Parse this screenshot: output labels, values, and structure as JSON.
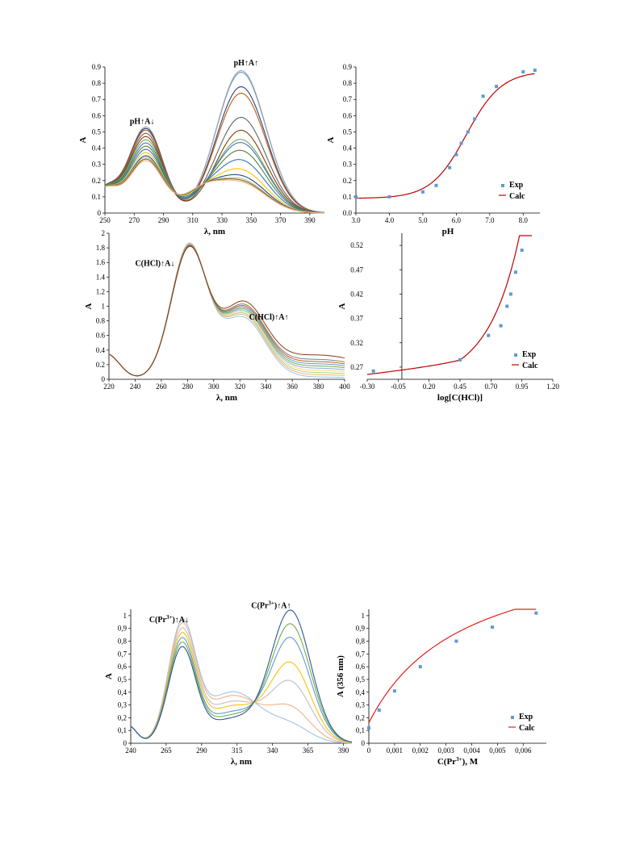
{
  "chart_data": [
    {
      "id": "c1",
      "type": "line",
      "xlabel": "λ, nm",
      "ylabel": "A",
      "xlim": [
        250,
        400
      ],
      "ylim": [
        0,
        0.9
      ],
      "xticks": [
        "250",
        "270",
        "290",
        "310",
        "330",
        "350",
        "370",
        "390"
      ],
      "yticks": [
        "0",
        "0.1",
        "0.2",
        "0.3",
        "0.4",
        "0.5",
        "0.6",
        "0.7",
        "0.8",
        "0.9"
      ],
      "annotations": [
        {
          "text": "pH↑A↓",
          "x": 267,
          "y": 0.55
        },
        {
          "text": "pH↑A↑",
          "x": 338,
          "y": 0.91
        }
      ],
      "shared": {
        "iso1": 255,
        "iso1y": 0.15,
        "iso2": 297,
        "iso2y": 0.27
      },
      "series": [
        {
          "color": "#5b9bd5",
          "p1": 0.52,
          "p2": 0.87
        },
        {
          "color": "#a5a5a5",
          "p1": 0.53,
          "p2": 0.88
        },
        {
          "color": "#264478",
          "p1": 0.52,
          "p2": 0.78
        },
        {
          "color": "#c55a11",
          "p1": 0.51,
          "p2": 0.74
        },
        {
          "color": "#636363",
          "p1": 0.49,
          "p2": 0.59
        },
        {
          "color": "#843c0c",
          "p1": 0.47,
          "p2": 0.51
        },
        {
          "color": "#70ad47",
          "p1": 0.45,
          "p2": 0.45
        },
        {
          "color": "#4472c4",
          "p1": 0.43,
          "p2": 0.43
        },
        {
          "color": "#548235",
          "p1": 0.41,
          "p2": 0.38
        },
        {
          "color": "#2e75b6",
          "p1": 0.39,
          "p2": 0.32
        },
        {
          "color": "#ffc000",
          "p1": 0.37,
          "p2": 0.26
        },
        {
          "color": "#1f4e79",
          "p1": 0.35,
          "p2": 0.22
        },
        {
          "color": "#bfbfbf",
          "p1": 0.34,
          "p2": 0.2
        },
        {
          "color": "#7f6000",
          "p1": 0.33,
          "p2": 0.19
        },
        {
          "color": "#f4b183",
          "p1": 0.32,
          "p2": 0.18
        }
      ]
    },
    {
      "id": "c2",
      "type": "scatter",
      "xlabel": "pH",
      "ylabel": "A",
      "xlim": [
        3.0,
        8.5
      ],
      "ylim": [
        0,
        0.9
      ],
      "xticks": [
        "3.0",
        "4.0",
        "5.0",
        "6.0",
        "7.0",
        "8.0"
      ],
      "yticks": [
        "0.0",
        "0.1",
        "0.2",
        "0.3",
        "0.4",
        "0.5",
        "0.6",
        "0.7",
        "0.8",
        "0.9"
      ],
      "legend": [
        "Exp",
        "Calc"
      ],
      "exp_color": "#5b9bd5",
      "calc_color": "#c00000",
      "exp": {
        "x": [
          3.0,
          4.0,
          5.0,
          5.4,
          5.8,
          6.0,
          6.15,
          6.35,
          6.55,
          6.8,
          7.2,
          8.0,
          8.35
        ],
        "y": [
          0.1,
          0.1,
          0.13,
          0.17,
          0.28,
          0.36,
          0.43,
          0.5,
          0.58,
          0.72,
          0.78,
          0.87,
          0.88
        ]
      },
      "calc": {
        "base": 0.09,
        "top": 0.875,
        "pk": 6.3,
        "slope": 1.9
      }
    },
    {
      "id": "c3",
      "type": "line",
      "xlabel": "λ, nm",
      "ylabel": "A",
      "xlim": [
        220,
        400
      ],
      "ylim": [
        0,
        2
      ],
      "xticks": [
        "220",
        "240",
        "260",
        "280",
        "300",
        "320",
        "340",
        "360",
        "380",
        "400"
      ],
      "yticks": [
        "0",
        "0.2",
        "0.4",
        "0.6",
        "0.8",
        "1",
        "1.2",
        "1.4",
        "1.6",
        "1.8",
        "2"
      ],
      "annotations": [
        {
          "text": "C(HCl)↑A↓",
          "x": 240,
          "y": 1.55
        },
        {
          "text": "C(HCl)↑A↑",
          "x": 327,
          "y": 0.82
        }
      ],
      "series": [
        {
          "color": "#9dc3e6",
          "peak": 1.82,
          "sh": 0.83,
          "tail": 0.01
        },
        {
          "color": "#f4b183",
          "peak": 1.81,
          "sh": 0.85,
          "tail": 0.02
        },
        {
          "color": "#a9d18e",
          "peak": 1.8,
          "sh": 0.86,
          "tail": 0.03
        },
        {
          "color": "#ffd966",
          "peak": 1.8,
          "sh": 0.87,
          "tail": 0.04
        },
        {
          "color": "#8faadc",
          "peak": 1.79,
          "sh": 0.88,
          "tail": 0.05
        },
        {
          "color": "#70ad47",
          "peak": 1.78,
          "sh": 0.89,
          "tail": 0.06
        },
        {
          "color": "#5b9bd5",
          "peak": 1.78,
          "sh": 0.9,
          "tail": 0.07
        },
        {
          "color": "#c55a11",
          "peak": 1.77,
          "sh": 0.91,
          "tail": 0.08
        },
        {
          "color": "#7f7f7f",
          "peak": 1.76,
          "sh": 0.92,
          "tail": 0.09
        },
        {
          "color": "#843c0c",
          "peak": 1.75,
          "sh": 0.94,
          "tail": 0.11
        }
      ]
    },
    {
      "id": "c4",
      "type": "scatter",
      "xlabel": "log[C(HCl)]",
      "ylabel": "A",
      "xlim": [
        -0.3,
        1.2
      ],
      "ylim": [
        0.245,
        0.545
      ],
      "xticks": [
        "-0.30",
        "-0.05",
        "0.20",
        "0.45",
        "0.70",
        "0.95",
        "1.20"
      ],
      "ytick_values": [
        0.27,
        0.32,
        0.37,
        0.42,
        0.47,
        0.52
      ],
      "yticks": [
        "0.27",
        "0.32",
        "0.37",
        "0.42",
        "0.47",
        "0.52"
      ],
      "legend": [
        "Exp",
        "Calc"
      ],
      "exp_color": "#5b9bd5",
      "calc_color": "#c00000",
      "exp": {
        "x": [
          -0.25,
          0.45,
          0.68,
          0.78,
          0.83,
          0.86,
          0.9,
          0.95
        ],
        "y": [
          0.262,
          0.285,
          0.335,
          0.355,
          0.395,
          0.42,
          0.465,
          0.51
        ]
      },
      "calc": {
        "x0": -0.3,
        "y0": 0.262,
        "slope": 0.03,
        "k": 4.2,
        "c": 0.037
      }
    },
    {
      "id": "c5",
      "type": "line",
      "xlabel": "λ, nm",
      "ylabel": "A",
      "xlim": [
        240,
        396
      ],
      "ylim": [
        0,
        1.05
      ],
      "xticks": [
        "240",
        "265",
        "290",
        "315",
        "340",
        "365",
        "390"
      ],
      "yticks": [
        "0",
        "0,1",
        "0,2",
        "0,3",
        "0,4",
        "0,5",
        "0,6",
        "0,7",
        "0,8",
        "0,9",
        "1"
      ],
      "annotations": [
        {
          "text": "C(Pr",
          "sup": "3+",
          "tail": ")↑A↓",
          "x": 253,
          "y": 0.95
        },
        {
          "text": "C(Pr",
          "sup": "3+",
          "tail": ")↑A↑",
          "x": 325,
          "y": 1.06
        }
      ],
      "series": [
        {
          "color": "#9dc3e6",
          "p1": 0.89,
          "p2": 0.12
        },
        {
          "color": "#f4b183",
          "p1": 0.87,
          "p2": 0.25
        },
        {
          "color": "#bfbfbf",
          "p1": 0.84,
          "p2": 0.45
        },
        {
          "color": "#ffc000",
          "p1": 0.81,
          "p2": 0.6
        },
        {
          "color": "#5b9bd5",
          "p1": 0.78,
          "p2": 0.8
        },
        {
          "color": "#70ad47",
          "p1": 0.75,
          "p2": 0.91
        },
        {
          "color": "#2f5597",
          "p1": 0.72,
          "p2": 1.02
        }
      ]
    },
    {
      "id": "c6",
      "type": "scatter",
      "xlabel": "C(Pr",
      "xlabel_sup": "3+",
      "xlabel_tail": "), M",
      "ylabel": "A (356 nm)",
      "xlim": [
        0,
        0.0069
      ],
      "ylim": [
        0,
        1.05
      ],
      "xticks": [
        "0",
        "0,001",
        "0,002",
        "0,003",
        "0,004",
        "0,005",
        "0,006"
      ],
      "yticks": [
        "0",
        "0,1",
        "0,2",
        "0,3",
        "0,4",
        "0,5",
        "0,6",
        "0,7",
        "0,8",
        "0,9",
        "1"
      ],
      "legend": [
        "Exp",
        "Calc"
      ],
      "exp_color": "#5b9bd5",
      "calc_color": "#e0201b",
      "exp": {
        "x": [
          0,
          0.0004,
          0.001,
          0.002,
          0.0034,
          0.0048,
          0.0065
        ],
        "y": [
          0.12,
          0.26,
          0.41,
          0.6,
          0.8,
          0.91,
          1.02
        ]
      },
      "calc": {
        "A0": 0.16,
        "Amax": 1.63,
        "K": 270
      }
    }
  ]
}
